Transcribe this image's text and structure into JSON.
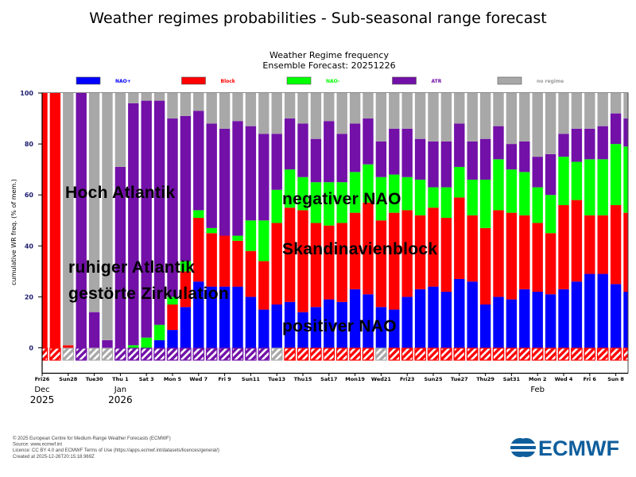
{
  "header": {
    "title": "Weather regimes probabilities - Sub-seasonal range forecast"
  },
  "chart_data": {
    "type": "bar",
    "stacked": true,
    "title": "Weather Regime frequency",
    "subtitle": "Ensemble Forecast: 20251226",
    "ylabel": "cumulative WR freq. (% of mem.)",
    "xlabel": "",
    "ylim": [
      -10,
      100
    ],
    "yticks": [
      0,
      20,
      40,
      60,
      80,
      100
    ],
    "grid": false,
    "legend_position": "top",
    "xticklabels": [
      {
        "label": "Fri26",
        "weekend": false
      },
      {
        "label": "Sun28",
        "weekend": true
      },
      {
        "label": "Tue30",
        "weekend": false
      },
      {
        "label": "Thu 1",
        "weekend": false
      },
      {
        "label": "Sat 3",
        "weekend": false
      },
      {
        "label": "Mon 5",
        "weekend": false
      },
      {
        "label": "Wed 7",
        "weekend": false
      },
      {
        "label": "Fri 9",
        "weekend": false
      },
      {
        "label": "Sun11",
        "weekend": true
      },
      {
        "label": "Tue13",
        "weekend": false
      },
      {
        "label": "Thu15",
        "weekend": false
      },
      {
        "label": "Sat17",
        "weekend": false
      },
      {
        "label": "Mon19",
        "weekend": false
      },
      {
        "label": "Wed21",
        "weekend": false
      },
      {
        "label": "Fri23",
        "weekend": false
      },
      {
        "label": "Sun25",
        "weekend": true
      },
      {
        "label": "Tue27",
        "weekend": false
      },
      {
        "label": "Thu29",
        "weekend": false
      },
      {
        "label": "Sat31",
        "weekend": false
      },
      {
        "label": "Mon 2",
        "weekend": false
      },
      {
        "label": "Wed 4",
        "weekend": false
      },
      {
        "label": "Fri 6",
        "weekend": false
      },
      {
        "label": "Sun 8",
        "weekend": true
      }
    ],
    "month_labels": [
      {
        "month": "Dec",
        "year": "2025",
        "tick": 0
      },
      {
        "month": "Jan",
        "year": "2026",
        "tick": 3
      },
      {
        "month": "Feb",
        "year": "",
        "tick": 19
      }
    ],
    "series": [
      {
        "key": "naoplus",
        "name": "NAO+",
        "color": "#0000ff",
        "values": [
          0,
          0,
          0,
          0,
          0,
          0,
          0,
          0,
          0,
          3,
          7,
          16,
          26,
          24,
          24,
          24,
          20,
          15,
          17,
          18,
          14,
          16,
          19,
          18,
          23,
          21,
          16,
          15,
          20,
          23,
          24,
          22,
          27,
          26,
          17,
          20,
          19,
          23,
          22,
          21,
          23,
          26,
          29,
          29,
          25,
          22
        ]
      },
      {
        "key": "block",
        "name": "Block",
        "color": "#ff0000",
        "values": [
          100,
          100,
          1,
          0,
          0,
          0,
          0,
          0,
          0,
          0,
          10,
          14,
          25,
          21,
          20,
          18,
          18,
          19,
          32,
          37,
          40,
          33,
          29,
          31,
          30,
          36,
          34,
          38,
          34,
          29,
          31,
          29,
          32,
          26,
          30,
          34,
          34,
          29,
          27,
          24,
          33,
          32,
          23,
          23,
          31,
          31
        ]
      },
      {
        "key": "naominus",
        "name": "NAO-",
        "color": "#00ff00",
        "values": [
          0,
          0,
          0,
          0,
          0,
          0,
          0,
          1,
          4,
          6,
          3,
          4,
          3,
          2,
          0,
          2,
          12,
          16,
          13,
          15,
          13,
          16,
          17,
          16,
          16,
          15,
          17,
          15,
          13,
          14,
          8,
          12,
          12,
          14,
          19,
          20,
          17,
          17,
          14,
          15,
          19,
          15,
          22,
          22,
          24,
          26
        ]
      },
      {
        "key": "atr",
        "name": "ATR",
        "color": "#7210a8",
        "values": [
          0,
          0,
          0,
          100,
          14,
          3,
          71,
          95,
          93,
          88,
          70,
          57,
          39,
          41,
          42,
          45,
          37,
          34,
          22,
          20,
          21,
          17,
          24,
          19,
          19,
          18,
          14,
          18,
          19,
          16,
          18,
          18,
          17,
          15,
          16,
          13,
          10,
          12,
          12,
          16,
          9,
          13,
          12,
          13,
          12,
          11
        ]
      },
      {
        "key": "none",
        "name": "no regime",
        "color": "#a8a8a8",
        "values": [
          0,
          0,
          99,
          0,
          86,
          97,
          29,
          4,
          3,
          3,
          10,
          9,
          7,
          12,
          14,
          11,
          13,
          16,
          16,
          10,
          12,
          18,
          11,
          16,
          12,
          10,
          19,
          14,
          14,
          18,
          19,
          19,
          12,
          19,
          18,
          13,
          20,
          19,
          25,
          24,
          16,
          14,
          14,
          13,
          8,
          10
        ]
      }
    ],
    "dominant_regime": [
      "block",
      "block",
      "none",
      "atr",
      "none",
      "none",
      "atr",
      "atr",
      "atr",
      "atr",
      "atr",
      "atr",
      "atr",
      "atr",
      "atr",
      "atr",
      "atr",
      "atr",
      "none",
      "block",
      "block",
      "block",
      "block",
      "block",
      "block",
      "block",
      "none",
      "block",
      "block",
      "block",
      "block",
      "block",
      "block",
      "block",
      "block",
      "block",
      "block",
      "block",
      "block",
      "block",
      "block",
      "block",
      "block",
      "block",
      "block",
      "block"
    ],
    "annotations": [
      {
        "key": "hoch",
        "text": "Hoch Atlantik"
      },
      {
        "key": "ruhig",
        "text": "ruhiger Atlantik"
      },
      {
        "key": "gestoert",
        "text": "gestörte Zirkulation"
      },
      {
        "key": "negnao",
        "text": "negativer NAO"
      },
      {
        "key": "skand",
        "text": "Skandinavienblock"
      },
      {
        "key": "posnao",
        "text": "positiver NAO"
      }
    ]
  },
  "footer": {
    "lines": [
      "© 2025 European Centre for Medium-Range Weather Forecasts (ECMWF)",
      "Source: www.ecmwf.int",
      "Licence: CC BY 4.0 and ECMWF Terms of Use (https://apps.ecmwf.int/datasets/licences/general/)",
      "Created at 2025-12-26T20:15:18.969Z"
    ],
    "logo_text": "ECMWF"
  }
}
